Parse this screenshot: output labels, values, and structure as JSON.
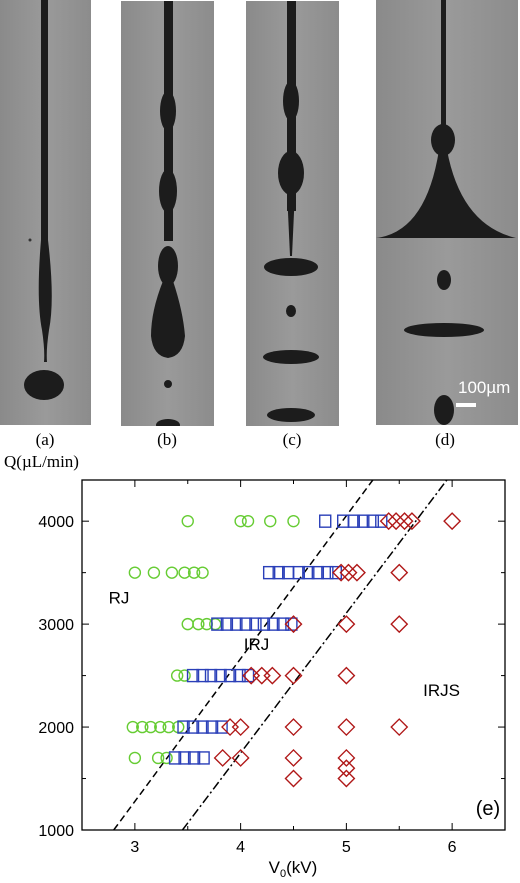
{
  "panels": [
    {
      "label": "(a)"
    },
    {
      "label": "(b)"
    },
    {
      "label": "(c)"
    },
    {
      "label": "(d)"
    }
  ],
  "scale_bar": "100µm",
  "q_label": "Q(µL/min)",
  "chart_data": {
    "type": "scatter",
    "xlabel": "V",
    "xlabel_sub": "0",
    "xlabel_unit": "(kV)",
    "ylabel": "",
    "xlim": [
      2.5,
      6.5
    ],
    "ylim": [
      1000,
      4400
    ],
    "xticks": [
      3,
      4,
      5,
      6
    ],
    "yticks": [
      1000,
      2000,
      3000,
      4000
    ],
    "panel_label": "(e)",
    "region_labels": [
      {
        "text": "RJ",
        "x": 2.85,
        "y": 3200
      },
      {
        "text": "IRJ",
        "x": 4.15,
        "y": 2750
      },
      {
        "text": "IRJS",
        "x": 5.9,
        "y": 2300
      }
    ],
    "boundaries": [
      {
        "style": "dashed",
        "x": [
          2.8,
          5.25
        ],
        "y": [
          1000,
          4400
        ]
      },
      {
        "style": "dashdot",
        "x": [
          3.45,
          5.95
        ],
        "y": [
          1000,
          4400
        ]
      }
    ],
    "series": [
      {
        "marker": "circle",
        "color": "#66cc33",
        "x": [
          3.5,
          4.0,
          4.07,
          4.28,
          4.5,
          3.0,
          3.18,
          3.35,
          3.47,
          3.56,
          3.64,
          3.5,
          3.6,
          3.68,
          3.76,
          3.4,
          3.47,
          2.98,
          3.07,
          3.15,
          3.24,
          3.32,
          3.41,
          3.0,
          3.22,
          3.3
        ],
        "y": [
          4000,
          4000,
          4000,
          4000,
          4000,
          3500,
          3500,
          3500,
          3500,
          3500,
          3500,
          3000,
          3000,
          3000,
          3000,
          2500,
          2500,
          2000,
          2000,
          2000,
          2000,
          2000,
          2000,
          1700,
          1700,
          1700
        ]
      },
      {
        "marker": "square",
        "color": "#2a3fb8",
        "x": [
          4.8,
          4.97,
          5.07,
          5.16,
          5.25,
          5.33,
          4.27,
          4.36,
          4.45,
          4.55,
          4.64,
          4.73,
          4.82,
          4.9,
          3.78,
          3.87,
          3.96,
          4.05,
          4.14,
          4.22,
          4.31,
          4.4,
          4.48,
          3.55,
          3.64,
          3.72,
          3.81,
          3.9,
          3.99,
          4.07,
          3.46,
          3.55,
          3.64,
          3.73,
          3.82,
          3.38,
          3.47,
          3.56,
          3.65
        ],
        "y": [
          4000,
          4000,
          4000,
          4000,
          4000,
          4000,
          3500,
          3500,
          3500,
          3500,
          3500,
          3500,
          3500,
          3500,
          3000,
          3000,
          3000,
          3000,
          3000,
          3000,
          3000,
          3000,
          3000,
          2500,
          2500,
          2500,
          2500,
          2500,
          2500,
          2500,
          2000,
          2000,
          2000,
          2000,
          2000,
          1700,
          1700,
          1700,
          1700
        ]
      },
      {
        "marker": "diamond",
        "color": "#b01818",
        "x": [
          5.4,
          5.47,
          5.55,
          5.62,
          6.0,
          4.95,
          5.02,
          5.1,
          5.5,
          4.5,
          5.0,
          5.5,
          4.1,
          4.2,
          4.3,
          4.5,
          5.0,
          3.9,
          4.0,
          4.5,
          5.0,
          5.5,
          3.83,
          4.0,
          4.5,
          5.0,
          5.0,
          4.5,
          5.0
        ],
        "y": [
          4000,
          4000,
          4000,
          4000,
          4000,
          3500,
          3500,
          3500,
          3500,
          3000,
          3000,
          3000,
          2500,
          2500,
          2500,
          2500,
          2500,
          2000,
          2000,
          2000,
          2000,
          2000,
          1700,
          1700,
          1700,
          1700,
          1600,
          1500,
          1500
        ]
      }
    ]
  }
}
